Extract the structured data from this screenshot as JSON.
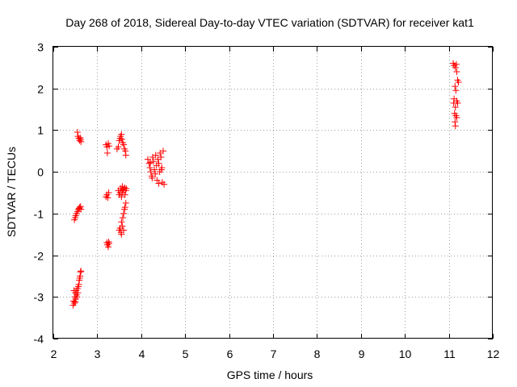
{
  "chart_data": {
    "type": "scatter",
    "title": "Day 268 of 2018, Sidereal Day-to-day VTEC variation (SDTVAR) for receiver kat1",
    "xlabel": "GPS time / hours",
    "ylabel": "SDTVAR / TECUs",
    "xlim": [
      2,
      12
    ],
    "ylim": [
      -4,
      3
    ],
    "xticks": [
      "2",
      "3",
      "4",
      "5",
      "6",
      "7",
      "8",
      "9",
      "10",
      "11",
      "12"
    ],
    "yticks": [
      "-4",
      "-3",
      "-2",
      "-1",
      "0",
      "1",
      "2",
      "3"
    ],
    "grid": true,
    "marker": "plus",
    "marker_color": "#ff0000",
    "series": [
      {
        "name": "SDTVAR",
        "points": [
          [
            2.45,
            -3.2
          ],
          [
            2.46,
            -3.1
          ],
          [
            2.48,
            -3.15
          ],
          [
            2.49,
            -3.0
          ],
          [
            2.5,
            -2.9
          ],
          [
            2.51,
            -3.05
          ],
          [
            2.52,
            -2.85
          ],
          [
            2.53,
            -2.95
          ],
          [
            2.54,
            -3.0
          ],
          [
            2.55,
            -2.8
          ],
          [
            2.56,
            -2.9
          ],
          [
            2.57,
            -2.75
          ],
          [
            2.58,
            -2.7
          ],
          [
            2.59,
            -2.6
          ],
          [
            2.6,
            -2.55
          ],
          [
            2.61,
            -2.5
          ],
          [
            2.62,
            -2.4
          ],
          [
            2.63,
            -2.38
          ],
          [
            2.47,
            -2.85
          ],
          [
            2.5,
            -3.12
          ],
          [
            2.48,
            -1.15
          ],
          [
            2.5,
            -1.1
          ],
          [
            2.51,
            -1.05
          ],
          [
            2.53,
            -1.0
          ],
          [
            2.55,
            -0.95
          ],
          [
            2.57,
            -0.9
          ],
          [
            2.59,
            -0.88
          ],
          [
            2.6,
            -0.85
          ],
          [
            2.62,
            -0.83
          ],
          [
            2.63,
            -0.9
          ],
          [
            2.55,
            0.95
          ],
          [
            2.56,
            0.85
          ],
          [
            2.58,
            0.8
          ],
          [
            2.6,
            0.75
          ],
          [
            2.61,
            0.82
          ],
          [
            2.62,
            0.78
          ],
          [
            2.63,
            0.72
          ],
          [
            3.2,
            0.65
          ],
          [
            3.22,
            0.6
          ],
          [
            3.23,
            0.45
          ],
          [
            3.25,
            0.68
          ],
          [
            3.27,
            0.62
          ],
          [
            3.2,
            -0.6
          ],
          [
            3.22,
            -0.55
          ],
          [
            3.24,
            -0.62
          ],
          [
            3.26,
            -0.5
          ],
          [
            3.22,
            -1.7
          ],
          [
            3.23,
            -1.75
          ],
          [
            3.25,
            -1.8
          ],
          [
            3.26,
            -1.68
          ],
          [
            3.27,
            -1.72
          ],
          [
            3.45,
            0.55
          ],
          [
            3.48,
            0.6
          ],
          [
            3.5,
            0.75
          ],
          [
            3.52,
            0.8
          ],
          [
            3.53,
            0.85
          ],
          [
            3.55,
            0.9
          ],
          [
            3.56,
            0.78
          ],
          [
            3.58,
            0.7
          ],
          [
            3.6,
            0.65
          ],
          [
            3.62,
            0.55
          ],
          [
            3.64,
            0.5
          ],
          [
            3.65,
            0.4
          ],
          [
            3.48,
            -0.45
          ],
          [
            3.5,
            -0.55
          ],
          [
            3.52,
            -0.5
          ],
          [
            3.53,
            -0.4
          ],
          [
            3.55,
            -0.6
          ],
          [
            3.56,
            -0.45
          ],
          [
            3.57,
            -0.35
          ],
          [
            3.58,
            -0.5
          ],
          [
            3.6,
            -0.42
          ],
          [
            3.62,
            -0.38
          ],
          [
            3.63,
            -0.55
          ],
          [
            3.65,
            -0.45
          ],
          [
            3.66,
            -0.4
          ],
          [
            3.5,
            -1.4
          ],
          [
            3.52,
            -1.35
          ],
          [
            3.54,
            -1.45
          ],
          [
            3.55,
            -1.2
          ],
          [
            3.57,
            -1.3
          ],
          [
            3.58,
            -1.1
          ],
          [
            3.6,
            -1.0
          ],
          [
            3.62,
            -0.9
          ],
          [
            3.63,
            -0.85
          ],
          [
            3.65,
            -0.75
          ],
          [
            3.55,
            -1.5
          ],
          [
            3.6,
            -1.4
          ],
          [
            4.15,
            0.3
          ],
          [
            4.18,
            0.2
          ],
          [
            4.2,
            0.1
          ],
          [
            4.22,
            0.0
          ],
          [
            4.24,
            -0.1
          ],
          [
            4.26,
            0.35
          ],
          [
            4.28,
            0.25
          ],
          [
            4.3,
            0.05
          ],
          [
            4.32,
            -0.05
          ],
          [
            4.33,
            0.4
          ],
          [
            4.35,
            0.15
          ],
          [
            4.36,
            -0.2
          ],
          [
            4.38,
            0.3
          ],
          [
            4.4,
            0.2
          ],
          [
            4.42,
            0.0
          ],
          [
            4.43,
            0.45
          ],
          [
            4.45,
            0.35
          ],
          [
            4.47,
            0.1
          ],
          [
            4.48,
            -0.25
          ],
          [
            4.5,
            0.5
          ],
          [
            4.52,
            -0.3
          ],
          [
            4.25,
            -0.15
          ],
          [
            4.4,
            -0.28
          ],
          [
            4.46,
            0.05
          ],
          [
            4.21,
            0.22
          ],
          [
            11.1,
            2.6
          ],
          [
            11.12,
            2.55
          ],
          [
            11.15,
            2.5
          ],
          [
            11.18,
            2.4
          ],
          [
            11.2,
            2.2
          ],
          [
            11.22,
            2.15
          ],
          [
            11.14,
            2.05
          ],
          [
            11.16,
            1.95
          ],
          [
            11.12,
            1.75
          ],
          [
            11.18,
            1.7
          ],
          [
            11.2,
            1.65
          ],
          [
            11.15,
            1.55
          ],
          [
            11.13,
            1.4
          ],
          [
            11.16,
            1.35
          ],
          [
            11.18,
            1.3
          ],
          [
            11.14,
            1.2
          ],
          [
            11.15,
            1.1
          ],
          [
            11.11,
            1.65
          ],
          [
            11.17,
            2.58
          ]
        ]
      }
    ]
  }
}
